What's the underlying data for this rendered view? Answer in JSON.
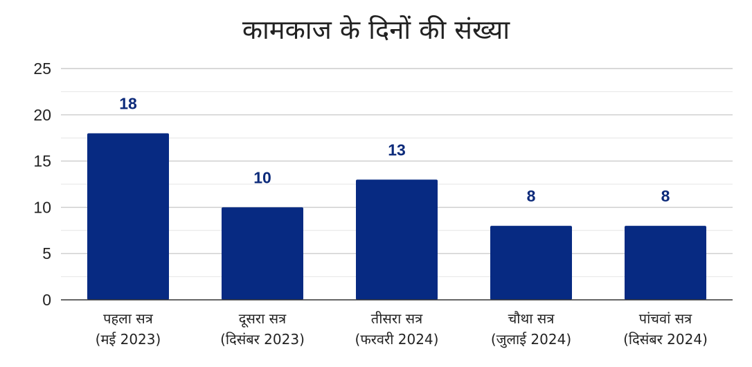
{
  "chart_data": {
    "type": "bar",
    "title": "कामकाज के दिनों की संख्या",
    "xlabel": "",
    "ylabel": "",
    "ylim": [
      0,
      25
    ],
    "yticks": [
      0,
      5,
      10,
      15,
      20,
      25
    ],
    "grid": true,
    "legend": "none",
    "categories": [
      {
        "line1": "पहला सत्र",
        "line2": "(मई 2023)"
      },
      {
        "line1": "दूसरा सत्र",
        "line2": "(दिसंबर 2023)"
      },
      {
        "line1": "तीसरा सत्र",
        "line2": "(फरवरी 2024)"
      },
      {
        "line1": "चौथा सत्र",
        "line2": "(जुलाई 2024)"
      },
      {
        "line1": "पांचवां सत्र",
        "line2": "(दिसंबर 2024)"
      }
    ],
    "values": [
      18,
      10,
      13,
      8,
      8
    ],
    "bar_color": "#072a82",
    "label_color": "#0c2a7a"
  }
}
